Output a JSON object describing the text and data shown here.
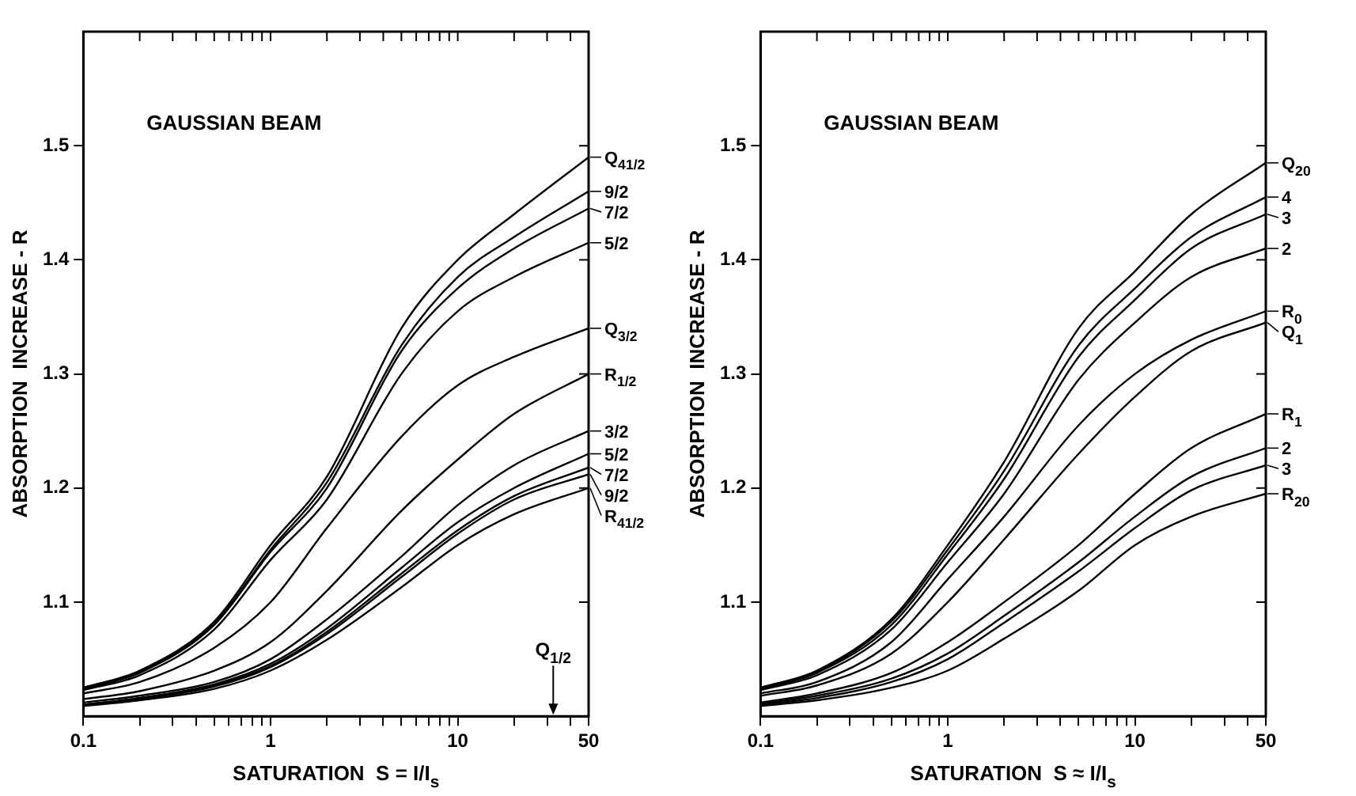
{
  "chart_data": [
    {
      "type": "line",
      "xlabel": "SATURATION  S = I/I$_{s}$",
      "ylabel": "ABSORPTION  INCREASE - R",
      "log": "x",
      "xlim": [
        0.1,
        50
      ],
      "ylim": [
        1.0,
        1.6
      ],
      "xticks": [
        0.1,
        {
          "value": 0.2,
          "label": null
        },
        {
          "value": 0.3,
          "label": null
        },
        {
          "value": 0.4,
          "label": null
        },
        {
          "value": 0.5,
          "label": null
        },
        {
          "value": 0.6,
          "label": null
        },
        {
          "value": 0.7,
          "label": null
        },
        {
          "value": 0.8,
          "label": null
        },
        {
          "value": 0.9,
          "label": null
        },
        1,
        {
          "value": 2,
          "label": null
        },
        {
          "value": 3,
          "label": null
        },
        {
          "value": 4,
          "label": null
        },
        {
          "value": 5,
          "label": null
        },
        {
          "value": 6,
          "label": null
        },
        {
          "value": 7,
          "label": null
        },
        {
          "value": 8,
          "label": null
        },
        {
          "value": 9,
          "label": null
        },
        10,
        {
          "value": 20,
          "label": null
        },
        {
          "value": 30,
          "label": null
        },
        {
          "value": 40,
          "label": null
        },
        50
      ],
      "yticks": [
        1.1,
        1.2,
        1.3,
        1.4,
        1.5
      ],
      "x": [
        0.1,
        0.2,
        0.5,
        1,
        2,
        5,
        10,
        20,
        50
      ],
      "annotations": [
        "GAUSSIAN BEAM",
        "Q$_{1/2}$"
      ],
      "legend": "right",
      "series": [
        {
          "name": "Q$_{41/2}$",
          "color": "#000000",
          "values": [
            1.025,
            1.04,
            1.083,
            1.15,
            1.21,
            1.34,
            1.4,
            1.44,
            1.49
          ]
        },
        {
          "name": "9/2",
          "color": "#000000",
          "values": [
            1.025,
            1.039,
            1.081,
            1.146,
            1.205,
            1.325,
            1.385,
            1.42,
            1.46
          ]
        },
        {
          "name": "7/2",
          "color": "#000000",
          "values": [
            1.024,
            1.038,
            1.08,
            1.144,
            1.2,
            1.32,
            1.375,
            1.41,
            1.445
          ]
        },
        {
          "name": "5/2",
          "color": "#000000",
          "values": [
            1.023,
            1.036,
            1.076,
            1.137,
            1.19,
            1.3,
            1.355,
            1.385,
            1.415
          ]
        },
        {
          "name": "Q$_{3/2}$",
          "color": "#000000",
          "values": [
            1.02,
            1.03,
            1.06,
            1.1,
            1.165,
            1.245,
            1.29,
            1.315,
            1.34
          ]
        },
        {
          "name": "R$_{1/2}$",
          "color": "#000000",
          "values": [
            1.015,
            1.022,
            1.04,
            1.065,
            1.11,
            1.18,
            1.225,
            1.265,
            1.3
          ]
        },
        {
          "name": "3/2",
          "color": "#000000",
          "values": [
            1.012,
            1.018,
            1.03,
            1.05,
            1.085,
            1.14,
            1.185,
            1.22,
            1.25
          ]
        },
        {
          "name": "5/2",
          "color": "#000000",
          "values": [
            1.01,
            1.016,
            1.028,
            1.046,
            1.077,
            1.13,
            1.17,
            1.2,
            1.23
          ]
        },
        {
          "name": "7/2",
          "color": "#000000",
          "values": [
            1.01,
            1.016,
            1.027,
            1.044,
            1.074,
            1.125,
            1.163,
            1.193,
            1.218
          ]
        },
        {
          "name": "9/2",
          "color": "#000000",
          "values": [
            1.01,
            1.015,
            1.026,
            1.043,
            1.072,
            1.122,
            1.16,
            1.19,
            1.212
          ]
        },
        {
          "name": "R$_{41/2}$",
          "color": "#000000",
          "values": [
            1.009,
            1.014,
            1.024,
            1.04,
            1.067,
            1.113,
            1.15,
            1.177,
            1.2
          ]
        }
      ]
    },
    {
      "type": "line",
      "xlabel": "SATURATION  S ≈ I/I$_{s}$",
      "ylabel": "ABSORPTION  INCREASE - R",
      "log": "x",
      "xlim": [
        0.1,
        50
      ],
      "ylim": [
        1.0,
        1.6
      ],
      "xticks": [
        0.1,
        {
          "value": 0.2,
          "label": null
        },
        {
          "value": 0.3,
          "label": null
        },
        {
          "value": 0.4,
          "label": null
        },
        {
          "value": 0.5,
          "label": null
        },
        {
          "value": 0.6,
          "label": null
        },
        {
          "value": 0.7,
          "label": null
        },
        {
          "value": 0.8,
          "label": null
        },
        {
          "value": 0.9,
          "label": null
        },
        1,
        {
          "value": 2,
          "label": null
        },
        {
          "value": 3,
          "label": null
        },
        {
          "value": 4,
          "label": null
        },
        {
          "value": 5,
          "label": null
        },
        {
          "value": 6,
          "label": null
        },
        {
          "value": 7,
          "label": null
        },
        {
          "value": 8,
          "label": null
        },
        {
          "value": 9,
          "label": null
        },
        10,
        {
          "value": 20,
          "label": null
        },
        {
          "value": 30,
          "label": null
        },
        {
          "value": 40,
          "label": null
        },
        50
      ],
      "yticks": [
        1.1,
        1.2,
        1.3,
        1.4,
        1.5
      ],
      "x": [
        0.1,
        0.2,
        0.5,
        1,
        2,
        5,
        10,
        20,
        50
      ],
      "annotations": [
        "GAUSSIAN BEAM"
      ],
      "legend": "right",
      "series": [
        {
          "name": "Q$_{20}$",
          "color": "#000000",
          "values": [
            1.025,
            1.04,
            1.085,
            1.15,
            1.223,
            1.34,
            1.39,
            1.44,
            1.485
          ]
        },
        {
          "name": "4",
          "color": "#000000",
          "values": [
            1.025,
            1.039,
            1.083,
            1.146,
            1.215,
            1.325,
            1.375,
            1.42,
            1.455
          ]
        },
        {
          "name": "3",
          "color": "#000000",
          "values": [
            1.024,
            1.038,
            1.08,
            1.142,
            1.208,
            1.315,
            1.365,
            1.41,
            1.44
          ]
        },
        {
          "name": "2",
          "color": "#000000",
          "values": [
            1.023,
            1.036,
            1.076,
            1.135,
            1.195,
            1.295,
            1.345,
            1.385,
            1.41
          ]
        },
        {
          "name": "R$_{0}$",
          "color": "#000000",
          "values": [
            1.02,
            1.03,
            1.065,
            1.12,
            1.175,
            1.255,
            1.3,
            1.33,
            1.355
          ]
        },
        {
          "name": "Q$_{1}$",
          "color": "#000000",
          "values": [
            1.018,
            1.027,
            1.055,
            1.1,
            1.155,
            1.23,
            1.28,
            1.32,
            1.345
          ]
        },
        {
          "name": "R$_{1}$",
          "color": "#000000",
          "values": [
            1.012,
            1.02,
            1.038,
            1.065,
            1.1,
            1.15,
            1.195,
            1.235,
            1.265
          ]
        },
        {
          "name": "2",
          "color": "#000000",
          "values": [
            1.011,
            1.018,
            1.033,
            1.055,
            1.088,
            1.135,
            1.175,
            1.21,
            1.235
          ]
        },
        {
          "name": "3",
          "color": "#000000",
          "values": [
            1.01,
            1.016,
            1.03,
            1.05,
            1.082,
            1.127,
            1.165,
            1.198,
            1.22
          ]
        },
        {
          "name": "R$_{20}$",
          "color": "#000000",
          "values": [
            1.009,
            1.014,
            1.025,
            1.04,
            1.068,
            1.11,
            1.15,
            1.175,
            1.195
          ]
        }
      ]
    }
  ]
}
